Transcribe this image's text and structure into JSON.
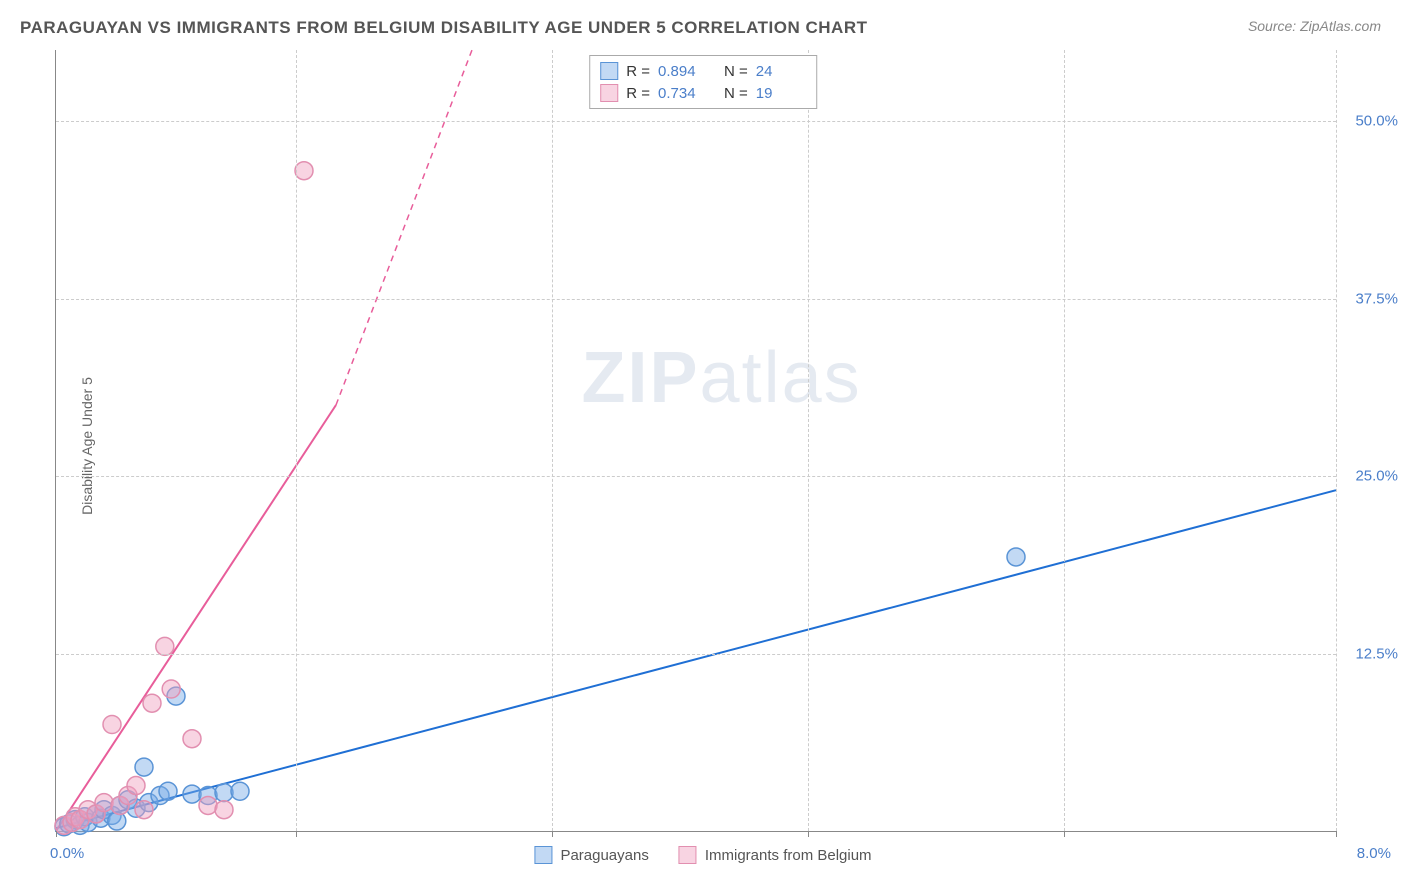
{
  "title": "PARAGUAYAN VS IMMIGRANTS FROM BELGIUM DISABILITY AGE UNDER 5 CORRELATION CHART",
  "source": "Source: ZipAtlas.com",
  "ylabel": "Disability Age Under 5",
  "watermark_bold": "ZIP",
  "watermark_light": "atlas",
  "chart": {
    "type": "scatter-with-regression",
    "background_color": "#ffffff",
    "grid_color": "#cccccc",
    "axis_color": "#888888",
    "tick_color": "#4a7ec9",
    "xlim": [
      0,
      8.0
    ],
    "ylim": [
      0,
      55.0
    ],
    "x_tick_positions": [
      0,
      1.5,
      3.1,
      4.7,
      6.3,
      8.0
    ],
    "x_tick_labels": [
      "0.0%",
      "",
      "",
      "",
      "",
      "8.0%"
    ],
    "y_gridlines": [
      12.5,
      25.0,
      37.5,
      50.0
    ],
    "y_tick_labels": [
      "12.5%",
      "25.0%",
      "37.5%",
      "50.0%"
    ],
    "marker_radius": 9,
    "marker_stroke_width": 1.5,
    "line_width": 2,
    "series": [
      {
        "name": "Paraguayans",
        "fill_color": "rgba(120,170,230,0.45)",
        "stroke_color": "#5a94d6",
        "line_color": "#1f6fd4",
        "R": "0.894",
        "N": "24",
        "regression": {
          "x1": 0.0,
          "y1": 0.2,
          "x2": 8.0,
          "y2": 24.0
        },
        "points": [
          [
            0.05,
            0.3
          ],
          [
            0.08,
            0.5
          ],
          [
            0.12,
            0.8
          ],
          [
            0.15,
            0.4
          ],
          [
            0.18,
            1.0
          ],
          [
            0.2,
            0.6
          ],
          [
            0.25,
            1.2
          ],
          [
            0.28,
            0.9
          ],
          [
            0.3,
            1.5
          ],
          [
            0.35,
            1.1
          ],
          [
            0.4,
            1.8
          ],
          [
            0.45,
            2.2
          ],
          [
            0.5,
            1.6
          ],
          [
            0.55,
            4.5
          ],
          [
            0.58,
            2.0
          ],
          [
            0.65,
            2.5
          ],
          [
            0.7,
            2.8
          ],
          [
            0.75,
            9.5
          ],
          [
            0.85,
            2.6
          ],
          [
            0.95,
            2.5
          ],
          [
            1.05,
            2.7
          ],
          [
            1.15,
            2.8
          ],
          [
            6.0,
            19.3
          ],
          [
            0.38,
            0.7
          ]
        ]
      },
      {
        "name": "Immigrants from Belgium",
        "fill_color": "rgba(240,160,190,0.45)",
        "stroke_color": "#e28fb0",
        "line_color": "#e85d9a",
        "R": "0.734",
        "N": "19",
        "regression": {
          "x1": 0.0,
          "y1": 0.0,
          "x2": 1.75,
          "y2": 30.0
        },
        "regression_dashed_to": {
          "x2": 2.6,
          "y2": 55.0
        },
        "points": [
          [
            0.05,
            0.4
          ],
          [
            0.1,
            0.6
          ],
          [
            0.12,
            1.0
          ],
          [
            0.15,
            0.8
          ],
          [
            0.2,
            1.5
          ],
          [
            0.25,
            1.2
          ],
          [
            0.3,
            2.0
          ],
          [
            0.35,
            7.5
          ],
          [
            0.4,
            1.8
          ],
          [
            0.45,
            2.5
          ],
          [
            0.5,
            3.2
          ],
          [
            0.55,
            1.5
          ],
          [
            0.6,
            9.0
          ],
          [
            0.68,
            13.0
          ],
          [
            0.72,
            10.0
          ],
          [
            0.85,
            6.5
          ],
          [
            0.95,
            1.8
          ],
          [
            1.05,
            1.5
          ],
          [
            1.55,
            46.5
          ]
        ]
      }
    ]
  },
  "legend_top": [
    {
      "swatch_fill": "rgba(120,170,230,0.45)",
      "swatch_stroke": "#5a94d6",
      "r_label": "R =",
      "r_val": "0.894",
      "n_label": "N =",
      "n_val": "24"
    },
    {
      "swatch_fill": "rgba(240,160,190,0.45)",
      "swatch_stroke": "#e28fb0",
      "r_label": "R =",
      "r_val": "0.734",
      "n_label": "N =",
      "n_val": "19"
    }
  ],
  "legend_bottom": [
    {
      "swatch_fill": "rgba(120,170,230,0.45)",
      "swatch_stroke": "#5a94d6",
      "label": "Paraguayans"
    },
    {
      "swatch_fill": "rgba(240,160,190,0.45)",
      "swatch_stroke": "#e28fb0",
      "label": "Immigrants from Belgium"
    }
  ]
}
